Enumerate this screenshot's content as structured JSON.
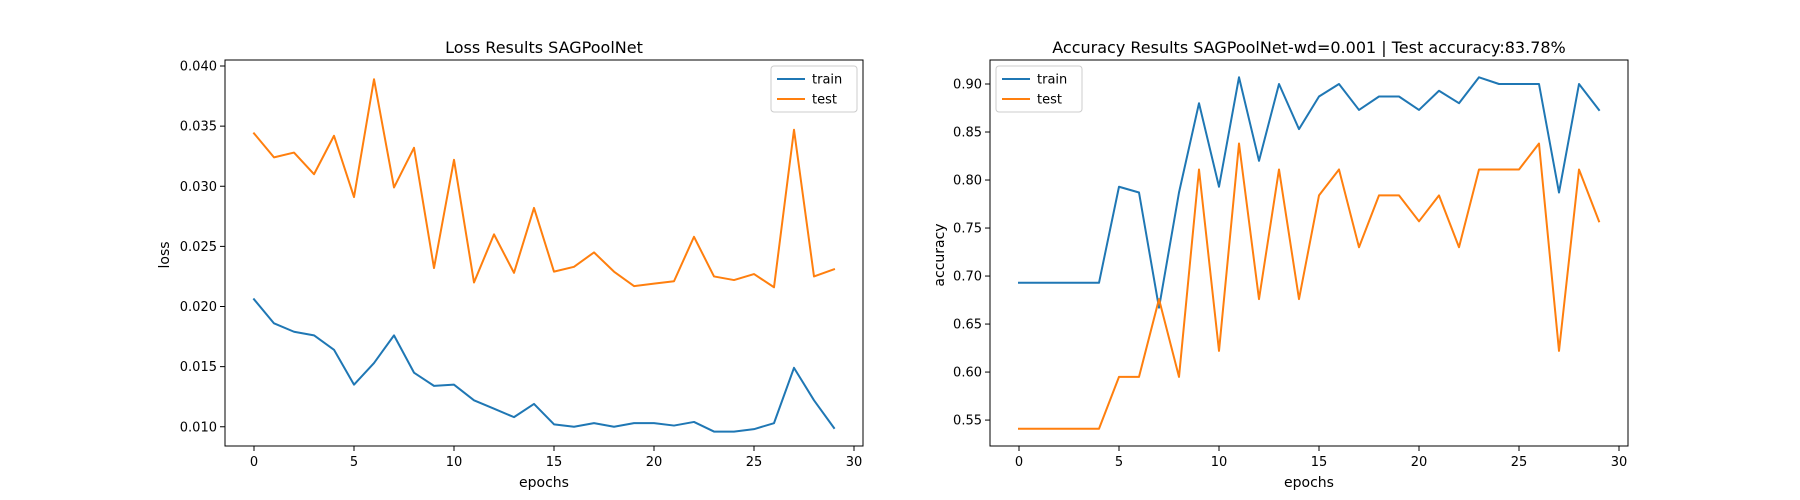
{
  "charts": [
    {
      "type": "line",
      "title": "Loss Results SAGPoolNet",
      "xlabel": "epochs",
      "ylabel": "loss",
      "xlim": [
        -1.45,
        30.45
      ],
      "ylim": [
        0.0084,
        0.0405
      ],
      "xticks": [
        0,
        5,
        10,
        15,
        20,
        25,
        30
      ],
      "yticks": [
        0.01,
        0.015,
        0.02,
        0.025,
        0.03,
        0.035,
        0.04
      ],
      "ytick_decimals": 3,
      "legend_position": "upper right",
      "grid": false,
      "x": [
        0,
        1,
        2,
        3,
        4,
        5,
        6,
        7,
        8,
        9,
        10,
        11,
        12,
        13,
        14,
        15,
        16,
        17,
        18,
        19,
        20,
        21,
        22,
        23,
        24,
        25,
        26,
        27,
        28,
        29
      ],
      "series": [
        {
          "name": "train",
          "color": "#1f77b4",
          "values": [
            0.0206,
            0.0186,
            0.0179,
            0.0176,
            0.0164,
            0.0135,
            0.0153,
            0.0176,
            0.0145,
            0.0134,
            0.0135,
            0.0122,
            0.0115,
            0.0108,
            0.0119,
            0.0102,
            0.01,
            0.0103,
            0.01,
            0.0103,
            0.0103,
            0.0101,
            0.0104,
            0.0096,
            0.0096,
            0.0098,
            0.0103,
            0.0149,
            0.0122,
            0.0099
          ]
        },
        {
          "name": "test",
          "color": "#ff7f0e",
          "values": [
            0.0344,
            0.0324,
            0.0328,
            0.031,
            0.0342,
            0.0291,
            0.0389,
            0.0299,
            0.0332,
            0.0232,
            0.0322,
            0.022,
            0.026,
            0.0228,
            0.0282,
            0.0229,
            0.0233,
            0.0245,
            0.0229,
            0.0217,
            0.0219,
            0.0221,
            0.0258,
            0.0225,
            0.0222,
            0.0227,
            0.0216,
            0.0347,
            0.0225,
            0.0231
          ]
        }
      ]
    },
    {
      "type": "line",
      "title": "Accuracy Results SAGPoolNet-wd=0.001 | Test accuracy:83.78%",
      "xlabel": "epochs",
      "ylabel": "accuracy",
      "xlim": [
        -1.45,
        30.45
      ],
      "ylim": [
        0.523,
        0.925
      ],
      "xticks": [
        0,
        5,
        10,
        15,
        20,
        25,
        30
      ],
      "yticks": [
        0.55,
        0.6,
        0.65,
        0.7,
        0.75,
        0.8,
        0.85,
        0.9
      ],
      "ytick_decimals": 2,
      "legend_position": "upper left",
      "grid": false,
      "x": [
        0,
        1,
        2,
        3,
        4,
        5,
        6,
        7,
        8,
        9,
        10,
        11,
        12,
        13,
        14,
        15,
        16,
        17,
        18,
        19,
        20,
        21,
        22,
        23,
        24,
        25,
        26,
        27,
        28,
        29
      ],
      "series": [
        {
          "name": "train",
          "color": "#1f77b4",
          "values": [
            0.693,
            0.693,
            0.693,
            0.693,
            0.693,
            0.793,
            0.787,
            0.667,
            0.787,
            0.88,
            0.793,
            0.907,
            0.82,
            0.9,
            0.853,
            0.887,
            0.9,
            0.873,
            0.887,
            0.887,
            0.873,
            0.893,
            0.88,
            0.907,
            0.9,
            0.9,
            0.9,
            0.787,
            0.9,
            0.873
          ]
        },
        {
          "name": "test",
          "color": "#ff7f0e",
          "values": [
            0.541,
            0.541,
            0.541,
            0.541,
            0.541,
            0.595,
            0.595,
            0.676,
            0.595,
            0.811,
            0.622,
            0.838,
            0.676,
            0.811,
            0.676,
            0.784,
            0.811,
            0.73,
            0.784,
            0.784,
            0.757,
            0.784,
            0.73,
            0.811,
            0.811,
            0.811,
            0.838,
            0.622,
            0.811,
            0.757
          ]
        }
      ]
    }
  ]
}
